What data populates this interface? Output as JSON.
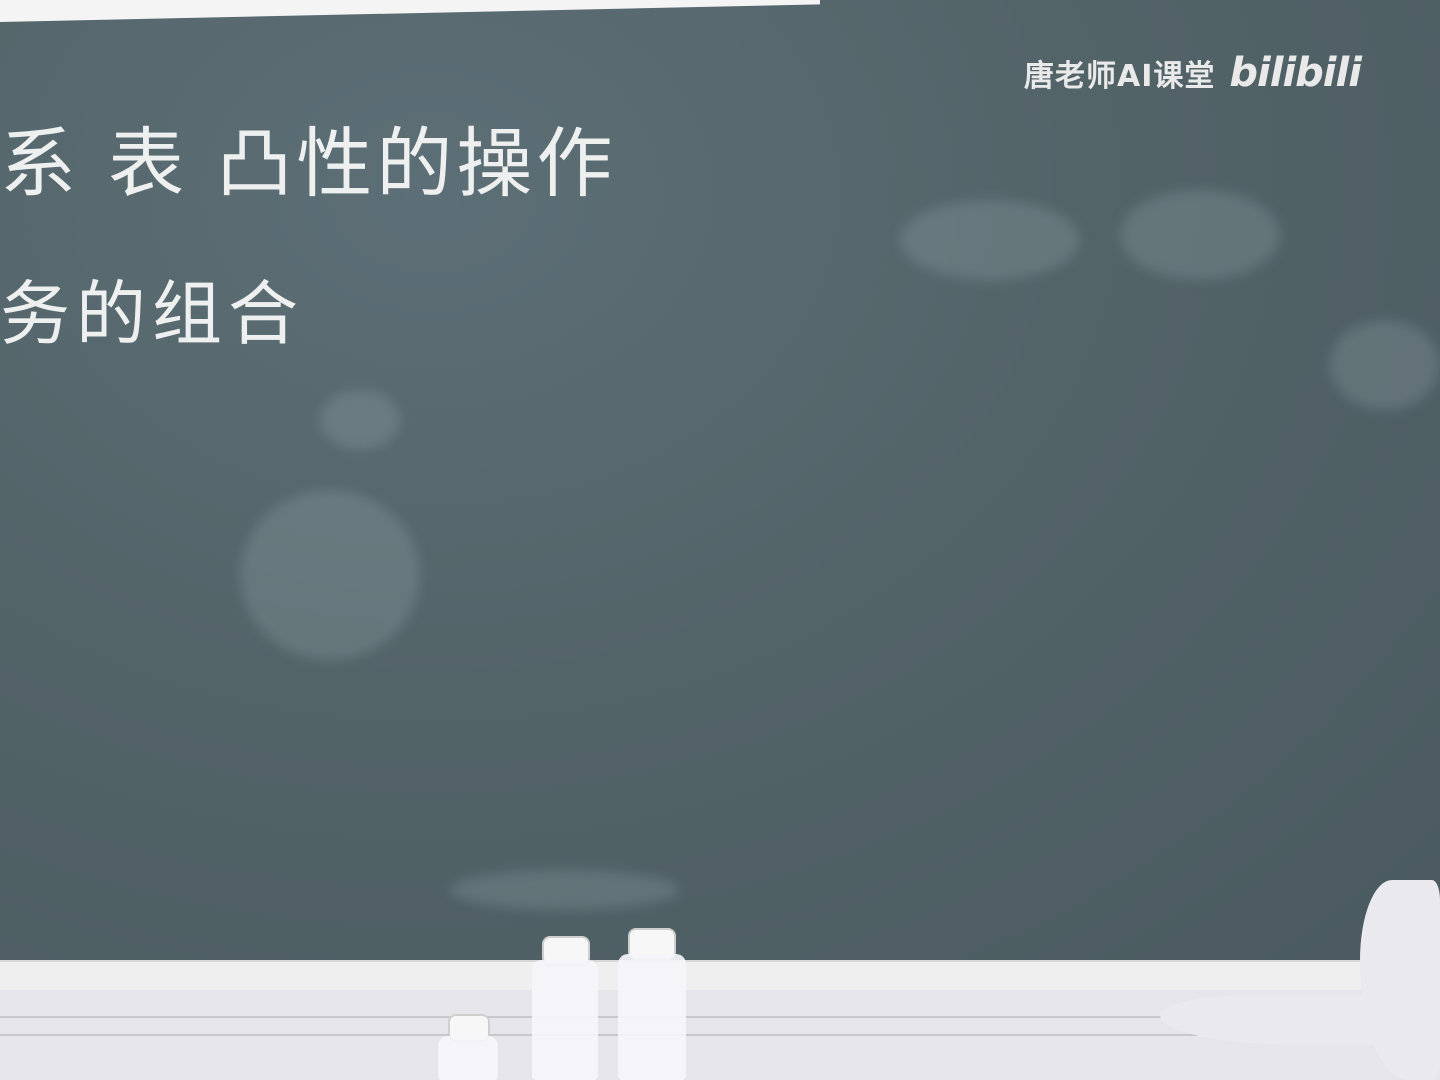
{
  "watermark": {
    "channel": "唐老师AI课堂",
    "logo": "bilibili"
  },
  "blackboard": {
    "line1": "系 表 凸性的操作",
    "line2": "务的组合"
  },
  "colors": {
    "board": "#536469",
    "chalk": "#eef0f0",
    "ledge": "#efefef"
  }
}
